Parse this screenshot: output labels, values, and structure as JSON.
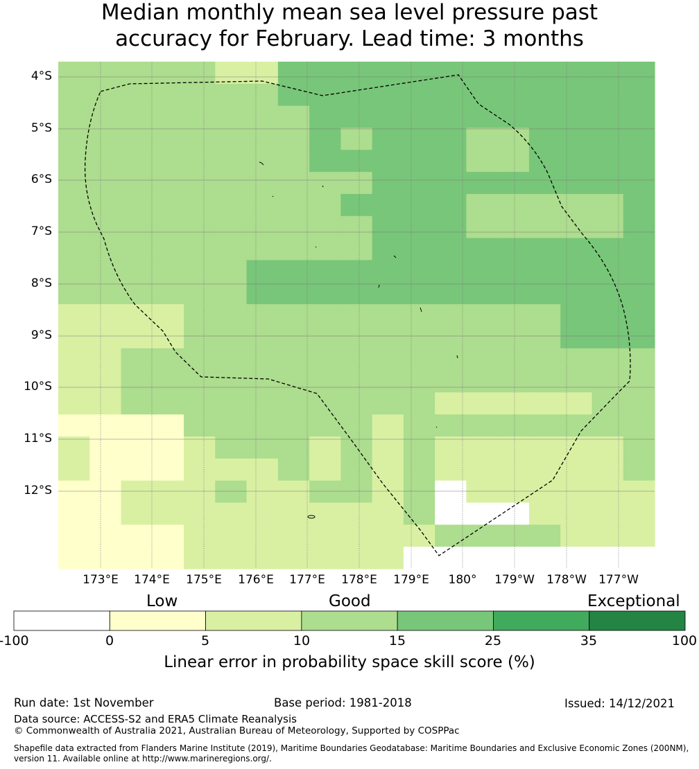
{
  "title_line1": "Median monthly mean sea level pressure past",
  "title_line2": "accuracy for February. Lead time: 3 months",
  "map": {
    "lat_labels": [
      "4°S",
      "5°S",
      "6°S",
      "7°S",
      "8°S",
      "9°S",
      "10°S",
      "11°S",
      "12°S"
    ],
    "lon_labels": [
      "173°E",
      "174°E",
      "175°E",
      "176°E",
      "177°E",
      "178°E",
      "179°E",
      "180°",
      "179°W",
      "178°W",
      "177°W"
    ],
    "grid_rows_top_to_bottom": [
      "1111100222222222222",
      "1111111222222222222",
      "1111111122222222222",
      "1111111121222112222",
      "1111111122222112222",
      "1111111111222222222",
      "1111111112222111112",
      "1111111111222111112",
      "1111111111222222222",
      "1111112222222222222",
      "1111112222222222222",
      "0000111111111111222",
      "0000111111111111222",
      "0011111111111111111",
      "0011111111111111111",
      "0011111111110000011",
      "5555111111011111111",
      "0555011101010000001",
      "0555000101010000001",
      "5500010011014000000",
      "5500000000014440000",
      "5555000000001111000",
      "5555000000044444444"
    ],
    "cell_key": {
      "0": "5 to 10",
      "1": "10 to 15",
      "2": "15 to 25",
      "4": "below 0",
      "5": "0 to 5"
    }
  },
  "colorbar": {
    "categories": [
      "Low",
      "Good",
      "Exceptional"
    ],
    "ticks": [
      "-100",
      "0",
      "5",
      "10",
      "15",
      "25",
      "35",
      "100"
    ],
    "colors": [
      "#ffffff",
      "#ffffcc",
      "#d9f0a3",
      "#addd8e",
      "#78c679",
      "#41ab5d",
      "#238443"
    ],
    "label": "Linear error in probability space skill score (%)"
  },
  "footer": {
    "run_date": "Run date: 1st November",
    "base_period": "Base period: 1981-2018",
    "issued": "Issued: 14/12/2021",
    "data_source": "Data source: ACCESS-S2 and ERA5 Climate Reanalysis",
    "copyright": "© Commonwealth of Australia 2021, Australian Bureau of Meteorology, Supported by COSPPac",
    "shapefile_line1": "Shapefile data extracted from Flanders Marine Institute (2019), Maritime Boundaries Geodatabase: Maritime Boundaries and Exclusive Economic Zones (200NM),",
    "shapefile_line2": "version 11. Available online at http://www.marineregions.org/."
  }
}
